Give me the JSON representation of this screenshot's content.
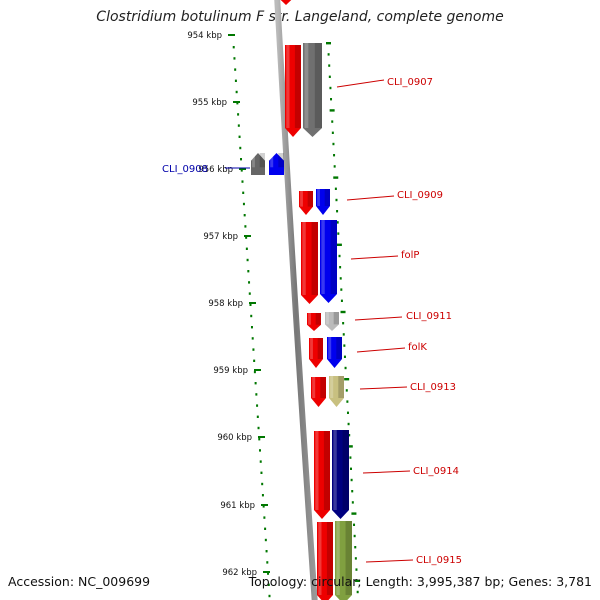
{
  "title": "Clostridium botulinum F str. Langeland, complete genome",
  "accession": "Accession: NC_009699",
  "topology": "Topology: circular; Length: 3,995,387 bp; Genes: 3,781",
  "ticks": [
    "954 kbp",
    "955 kbp",
    "956 kbp",
    "957 kbp",
    "958 kbp",
    "959 kbp",
    "960 kbp",
    "961 kbp",
    "962 kbp"
  ],
  "genes": [
    {
      "name": "CLI_0907",
      "strand": "reverse",
      "color": "#d0d0d0"
    },
    {
      "name": "CLI_0908",
      "strand": "forward",
      "color": "#0000ee"
    },
    {
      "name": "CLI_0909",
      "strand": "reverse",
      "color": "#0000ee"
    },
    {
      "name": "folP",
      "strand": "reverse",
      "color": "#0000ee"
    },
    {
      "name": "CLI_0911",
      "strand": "reverse",
      "color": "#bbbbbb"
    },
    {
      "name": "folK",
      "strand": "reverse",
      "color": "#0000ee"
    },
    {
      "name": "CLI_0913",
      "strand": "reverse",
      "color": "#c8c080"
    },
    {
      "name": "CLI_0914",
      "strand": "reverse",
      "color": "#000080"
    },
    {
      "name": "CLI_0915",
      "strand": "reverse",
      "color": "#80a040"
    }
  ],
  "colors": {
    "cds": "#ee0000",
    "label_reverse": "#cc0000",
    "label_forward": "#0000aa",
    "tick": "#007700",
    "backbone": "#8a8a8a"
  }
}
